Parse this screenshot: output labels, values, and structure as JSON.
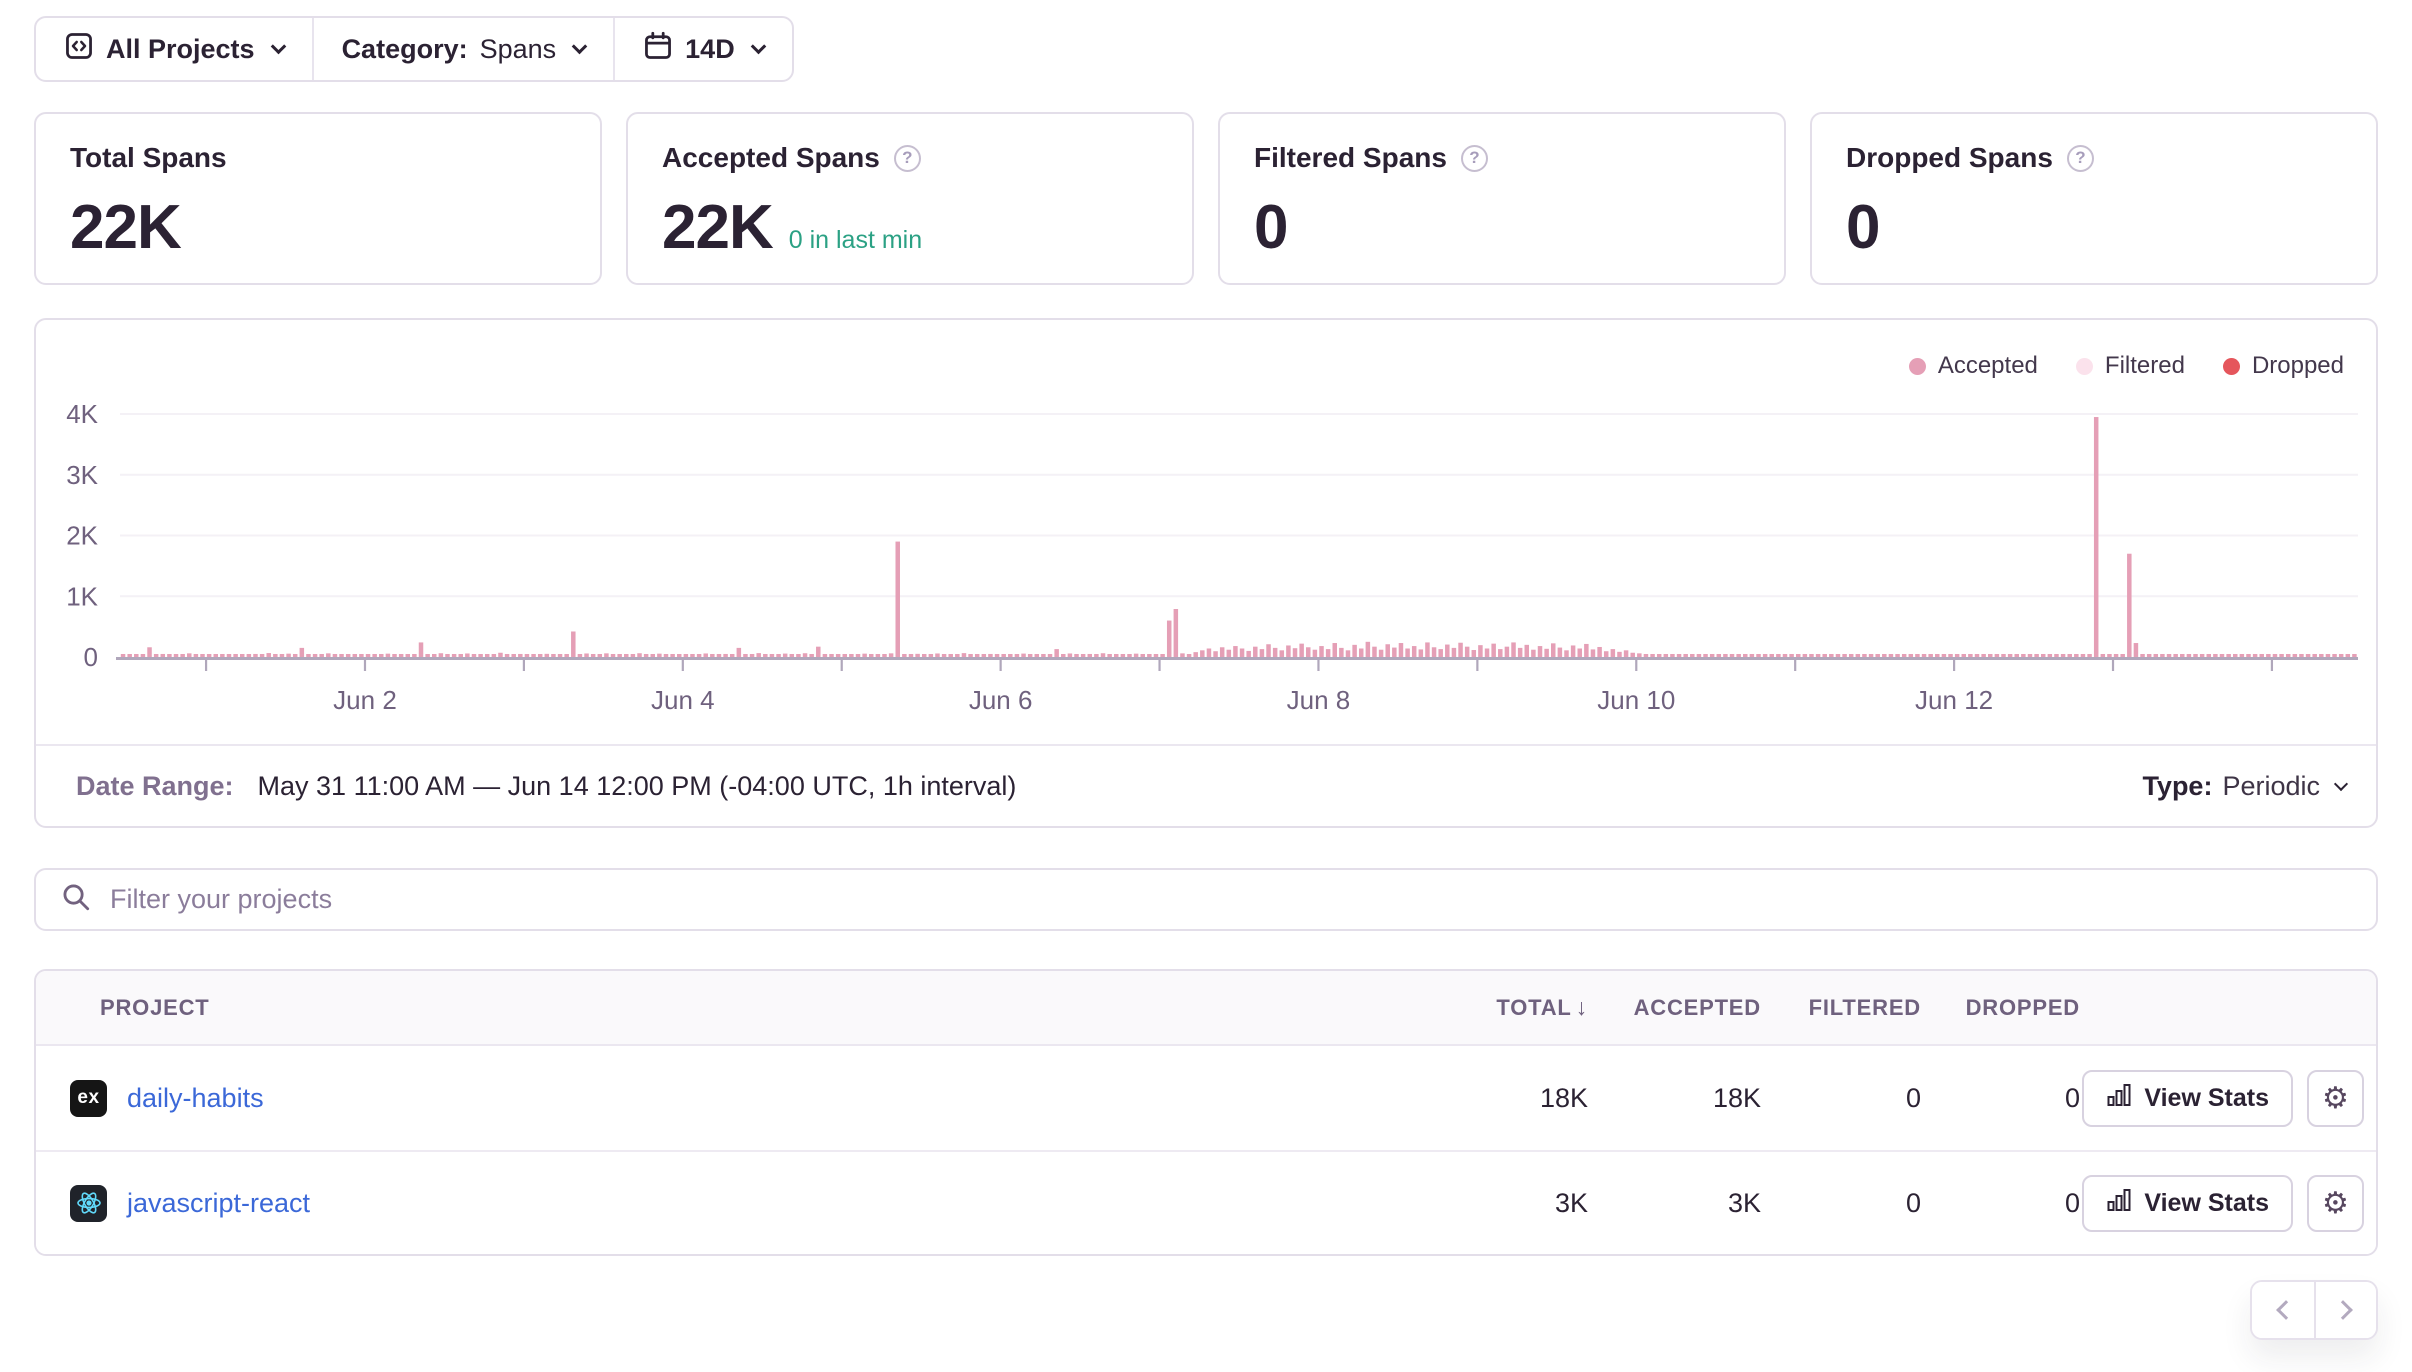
{
  "toolbar": {
    "projects_label": "All Projects",
    "category_label": "Category:",
    "category_value": "Spans",
    "period_value": "14D"
  },
  "cards": [
    {
      "title": "Total Spans",
      "value": "22K"
    },
    {
      "title": "Accepted Spans",
      "value": "22K",
      "sub": "0 in last min"
    },
    {
      "title": "Filtered Spans",
      "value": "0"
    },
    {
      "title": "Dropped Spans",
      "value": "0"
    }
  ],
  "colors": {
    "accepted": "#e59fb6",
    "filtered": "#fbe2ec",
    "dropped": "#e5565c",
    "green_sub": "#2ba184",
    "link_blue": "#3b68d8",
    "axis": "#b0a7bb",
    "gridline": "#f4f1f6",
    "tick_text": "#6f617e"
  },
  "chart_data": {
    "type": "bar",
    "x_start": "May 31 11:00",
    "x_end": "Jun 14 12:00",
    "interval": "1h",
    "ylim": [
      0,
      4000
    ],
    "yticks": [
      "0",
      "1K",
      "2K",
      "3K",
      "4K"
    ],
    "xticks": [
      "Jun 2",
      "Jun 4",
      "Jun 6",
      "Jun 8",
      "Jun 10",
      "Jun 12"
    ],
    "xtick_indices": [
      37,
      85,
      133,
      181,
      229,
      277
    ],
    "day_tick_indices": [
      13,
      37,
      61,
      85,
      109,
      133,
      157,
      181,
      205,
      229,
      253,
      277,
      301,
      325
    ],
    "legend": [
      {
        "label": "Accepted",
        "color": "#e59fb6"
      },
      {
        "label": "Filtered",
        "color": "#fbe2ec"
      },
      {
        "label": "Dropped",
        "color": "#e5565c"
      }
    ],
    "series": [
      {
        "name": "Accepted",
        "values": [
          30,
          22,
          45,
          28,
          160,
          35,
          50,
          25,
          40,
          30,
          60,
          38,
          26,
          20,
          32,
          24,
          45,
          28,
          38,
          22,
          50,
          30,
          65,
          40,
          26,
          55,
          34,
          150,
          42,
          28,
          36,
          60,
          24,
          46,
          30,
          38,
          25,
          28,
          40,
          22,
          55,
          32,
          26,
          48,
          30,
          240,
          38,
          24,
          62,
          35,
          45,
          28,
          58,
          33,
          26,
          44,
          30,
          70,
          36,
          25,
          50,
          24,
          38,
          28,
          52,
          30,
          44,
          26,
          420,
          36,
          58,
          32,
          24,
          60,
          40,
          28,
          46,
          34,
          62,
          26,
          38,
          55,
          30,
          48,
          28,
          30,
          45,
          26,
          58,
          34,
          28,
          50,
          32,
          150,
          40,
          26,
          64,
          38,
          48,
          30,
          56,
          28,
          36,
          62,
          26,
          170,
          34,
          44,
          28,
          26,
          40,
          30,
          55,
          28,
          46,
          24,
          60,
          1900,
          38,
          28,
          52,
          34,
          26,
          58,
          36,
          44,
          28,
          64,
          30,
          40,
          26,
          50,
          32,
          28,
          44,
          24,
          56,
          32,
          48,
          26,
          38,
          130,
          30,
          58,
          34,
          26,
          50,
          30,
          62,
          36,
          28,
          46,
          32,
          55,
          26,
          40,
          30,
          35,
          600,
          790,
          60,
          45,
          80,
          110,
          140,
          95,
          160,
          120,
          180,
          140,
          100,
          170,
          130,
          210,
          150,
          110,
          190,
          145,
          220,
          160,
          120,
          180,
          130,
          230,
          150,
          110,
          200,
          140,
          250,
          170,
          120,
          210,
          155,
          230,
          140,
          180,
          125,
          240,
          160,
          130,
          205,
          150,
          235,
          170,
          115,
          195,
          140,
          220,
          130,
          170,
          240,
          150,
          200,
          120,
          180,
          135,
          225,
          155,
          110,
          190,
          140,
          215,
          125,
          165,
          95,
          130,
          85,
          110,
          70,
          60,
          40,
          25,
          15,
          12,
          18,
          10,
          14,
          12,
          16,
          10,
          13,
          15,
          11,
          14,
          10,
          16,
          12,
          10,
          14,
          11,
          15,
          10,
          13,
          12,
          15,
          10,
          14,
          11,
          16,
          10,
          13,
          15,
          10,
          14,
          12,
          16,
          10,
          13,
          11,
          15,
          10,
          14,
          12,
          10,
          15,
          11,
          13,
          14,
          10,
          15,
          11,
          13,
          10,
          16,
          12,
          10,
          14,
          11,
          15,
          10,
          13,
          12,
          16,
          10,
          14,
          11,
          13,
          10,
          3950,
          12,
          14,
          10,
          13,
          1700,
          230,
          12,
          15,
          10,
          14,
          11,
          16,
          10,
          13,
          15,
          10,
          14,
          11,
          16,
          10,
          13,
          12,
          15,
          10,
          14,
          11,
          13,
          10,
          15,
          11,
          14,
          10,
          16,
          12,
          10,
          13,
          11,
          15,
          10
        ]
      },
      {
        "name": "Filtered",
        "values_constant": 0
      },
      {
        "name": "Dropped",
        "values_constant": 0
      }
    ]
  },
  "chart_footer": {
    "date_range_label": "Date Range:",
    "date_range_value": "May 31 11:00 AM — Jun 14 12:00 PM (-04:00 UTC, 1h interval)",
    "type_label": "Type:",
    "type_value": "Periodic"
  },
  "filter": {
    "placeholder": "Filter your projects"
  },
  "table": {
    "columns": {
      "project": "PROJECT",
      "total": "TOTAL",
      "accepted": "ACCEPTED",
      "filtered": "FILTERED",
      "dropped": "DROPPED"
    },
    "sort_arrow": "↓",
    "view_stats_label": "View Stats",
    "rows": [
      {
        "project": "daily-habits",
        "platform": "express",
        "total": "18K",
        "accepted": "18K",
        "filtered": "0",
        "dropped": "0"
      },
      {
        "project": "javascript-react",
        "platform": "react",
        "total": "3K",
        "accepted": "3K",
        "filtered": "0",
        "dropped": "0"
      }
    ]
  }
}
